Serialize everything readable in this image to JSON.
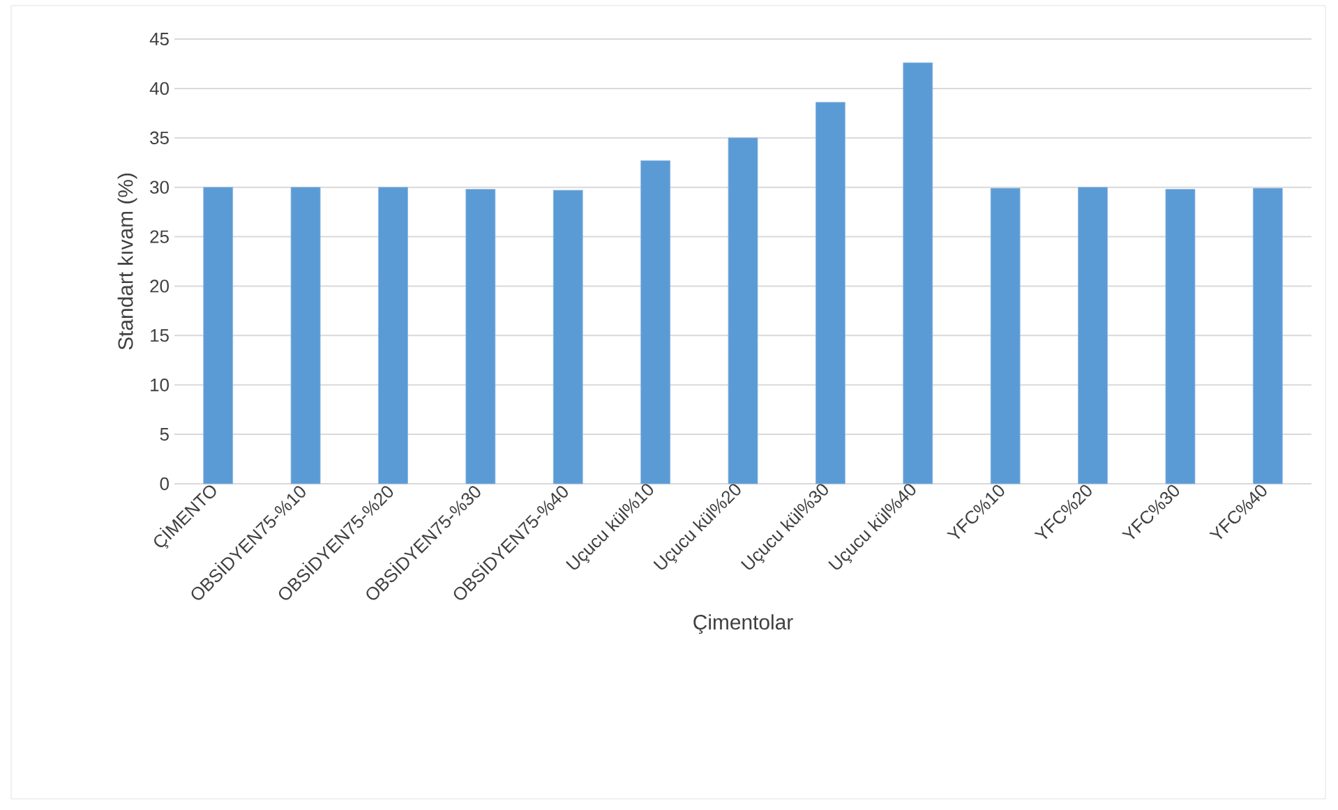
{
  "chart_data": {
    "type": "bar",
    "xlabel": "Çimentolar",
    "ylabel": "Standart kıvam (%)",
    "categories": [
      "ÇİMENTO",
      "OBSİDYEN75-%10",
      "OBSİDYEN75-%20",
      "OBSİDYEN75-%30",
      "OBSİDYEN75-%40",
      "Uçucu kül%10",
      "Uçucu kül%20",
      "Uçucu kül%30",
      "Uçucu kül%40",
      "YFC%10",
      "YFC%20",
      "YFC%30",
      "YFC%40"
    ],
    "values": [
      30.0,
      30.0,
      30.0,
      29.8,
      29.7,
      32.7,
      35.0,
      38.6,
      42.6,
      29.9,
      30.0,
      29.8,
      29.9
    ],
    "color": "#5b9bd5",
    "ylim": [
      0,
      45
    ],
    "yticks": [
      0,
      5,
      10,
      15,
      20,
      25,
      30,
      35,
      40,
      45
    ],
    "grid": "y"
  }
}
